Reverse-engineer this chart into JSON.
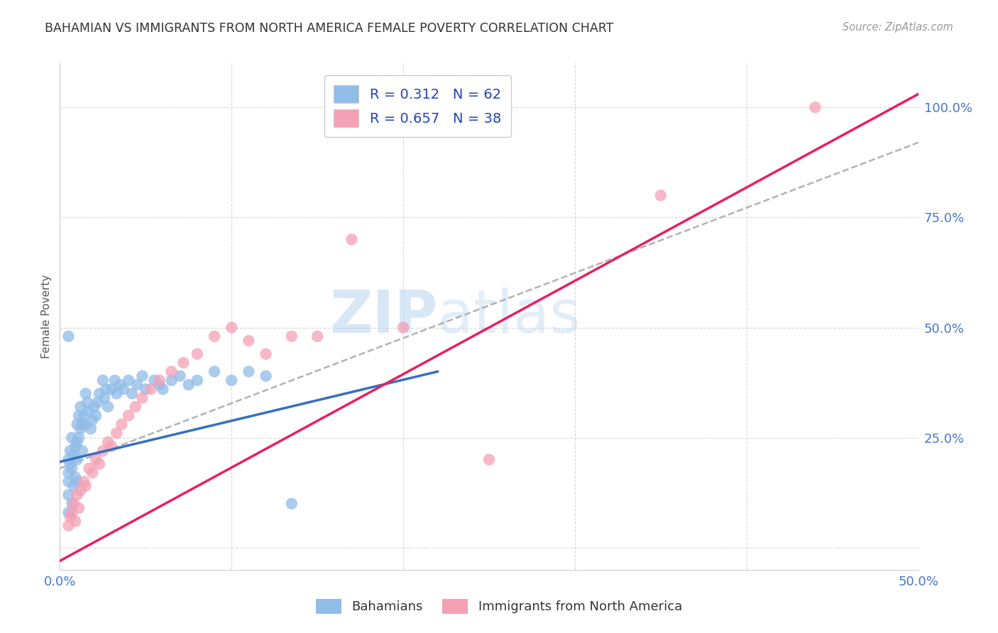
{
  "title": "BAHAMIAN VS IMMIGRANTS FROM NORTH AMERICA FEMALE POVERTY CORRELATION CHART",
  "source": "Source: ZipAtlas.com",
  "ylabel": "Female Poverty",
  "xlim": [
    0.0,
    0.5
  ],
  "ylim": [
    -0.05,
    1.1
  ],
  "xticks": [
    0.0,
    0.1,
    0.2,
    0.3,
    0.4,
    0.5
  ],
  "xtick_labels": [
    "0.0%",
    "",
    "",
    "",
    "",
    "50.0%"
  ],
  "yticks": [
    0.0,
    0.25,
    0.5,
    0.75,
    1.0
  ],
  "ytick_labels": [
    "",
    "25.0%",
    "50.0%",
    "75.0%",
    "100.0%"
  ],
  "blue_R": 0.312,
  "blue_N": 62,
  "pink_R": 0.657,
  "pink_N": 38,
  "blue_color": "#90bce8",
  "pink_color": "#f5a0b5",
  "blue_line_color": "#3570c0",
  "pink_line_color": "#e82060",
  "gray_line_color": "#aaaaaa",
  "legend_label_1": "Bahamians",
  "legend_label_2": "Immigrants from North America",
  "watermark_zip": "ZIP",
  "watermark_atlas": "atlas",
  "background_color": "#ffffff",
  "blue_x": [
    0.005,
    0.005,
    0.005,
    0.005,
    0.005,
    0.006,
    0.006,
    0.007,
    0.007,
    0.007,
    0.008,
    0.008,
    0.009,
    0.009,
    0.01,
    0.01,
    0.01,
    0.01,
    0.011,
    0.011,
    0.012,
    0.012,
    0.013,
    0.013,
    0.014,
    0.015,
    0.015,
    0.016,
    0.017,
    0.018,
    0.019,
    0.02,
    0.021,
    0.022,
    0.023,
    0.025,
    0.026,
    0.027,
    0.028,
    0.03,
    0.032,
    0.033,
    0.035,
    0.037,
    0.04,
    0.042,
    0.045,
    0.048,
    0.05,
    0.055,
    0.058,
    0.06,
    0.065,
    0.07,
    0.075,
    0.08,
    0.09,
    0.1,
    0.11,
    0.12,
    0.005,
    0.135
  ],
  "blue_y": [
    0.2,
    0.17,
    0.15,
    0.12,
    0.08,
    0.22,
    0.19,
    0.25,
    0.18,
    0.1,
    0.21,
    0.14,
    0.23,
    0.16,
    0.28,
    0.24,
    0.2,
    0.15,
    0.3,
    0.25,
    0.32,
    0.27,
    0.28,
    0.22,
    0.3,
    0.35,
    0.28,
    0.33,
    0.31,
    0.27,
    0.29,
    0.32,
    0.3,
    0.33,
    0.35,
    0.38,
    0.34,
    0.36,
    0.32,
    0.36,
    0.38,
    0.35,
    0.37,
    0.36,
    0.38,
    0.35,
    0.37,
    0.39,
    0.36,
    0.38,
    0.37,
    0.36,
    0.38,
    0.39,
    0.37,
    0.38,
    0.4,
    0.38,
    0.4,
    0.39,
    0.48,
    0.1
  ],
  "pink_x": [
    0.005,
    0.006,
    0.007,
    0.008,
    0.009,
    0.01,
    0.011,
    0.012,
    0.014,
    0.015,
    0.017,
    0.019,
    0.021,
    0.023,
    0.025,
    0.028,
    0.03,
    0.033,
    0.036,
    0.04,
    0.044,
    0.048,
    0.053,
    0.058,
    0.065,
    0.072,
    0.08,
    0.09,
    0.1,
    0.11,
    0.12,
    0.135,
    0.15,
    0.17,
    0.2,
    0.25,
    0.35,
    0.44
  ],
  "pink_y": [
    0.05,
    0.07,
    0.08,
    0.1,
    0.06,
    0.12,
    0.09,
    0.13,
    0.15,
    0.14,
    0.18,
    0.17,
    0.2,
    0.19,
    0.22,
    0.24,
    0.23,
    0.26,
    0.28,
    0.3,
    0.32,
    0.34,
    0.36,
    0.38,
    0.4,
    0.42,
    0.44,
    0.48,
    0.5,
    0.47,
    0.44,
    0.48,
    0.48,
    0.7,
    0.5,
    0.2,
    0.8,
    1.0
  ],
  "blue_line_x": [
    0.0,
    0.22
  ],
  "blue_line_y": [
    0.195,
    0.4
  ],
  "pink_line_x": [
    0.0,
    0.5
  ],
  "pink_line_y": [
    -0.03,
    1.03
  ],
  "gray_line_x": [
    0.0,
    0.5
  ],
  "gray_line_y": [
    0.18,
    0.92
  ]
}
